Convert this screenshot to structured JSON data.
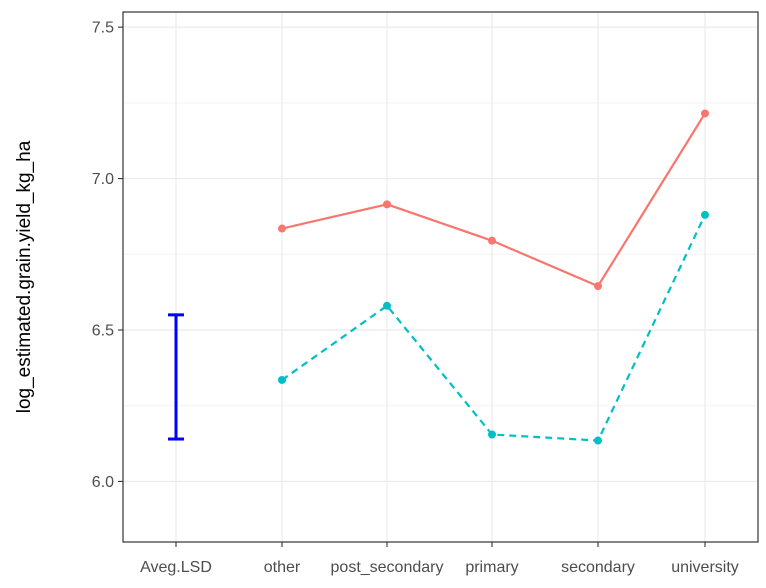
{
  "chart_data": {
    "type": "line",
    "title": "",
    "xlabel": "",
    "ylabel": "log_estimated.grain.yield_kg_ha",
    "ylim": [
      5.8,
      7.55
    ],
    "yticks": [
      6.0,
      6.5,
      7.0,
      7.5
    ],
    "ytick_labels": [
      "6.0",
      "6.5",
      "7.0",
      "7.5"
    ],
    "categories": [
      "Aveg.LSD",
      "other",
      "post_secondary",
      "primary",
      "secondary",
      "university"
    ],
    "grid": true,
    "legend": "none",
    "series": [
      {
        "color": "#F8766D",
        "linestyle": "solid",
        "points": [
          {
            "x": "other",
            "y": 6.835
          },
          {
            "x": "post_secondary",
            "y": 6.915
          },
          {
            "x": "primary",
            "y": 6.795
          },
          {
            "x": "secondary",
            "y": 6.645
          },
          {
            "x": "university",
            "y": 7.215
          }
        ]
      },
      {
        "color": "#00BFC4",
        "linestyle": "dashed",
        "points": [
          {
            "x": "other",
            "y": 6.335
          },
          {
            "x": "post_secondary",
            "y": 6.58
          },
          {
            "x": "primary",
            "y": 6.155
          },
          {
            "x": "secondary",
            "y": 6.135
          },
          {
            "x": "university",
            "y": 6.88
          }
        ]
      }
    ],
    "lsd_bar": {
      "category": "Aveg.LSD",
      "low": 6.14,
      "high": 6.55,
      "color": "#0000FF"
    }
  }
}
